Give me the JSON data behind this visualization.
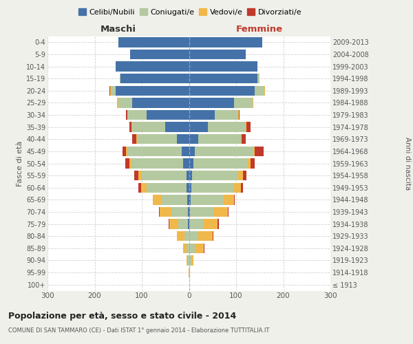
{
  "age_groups": [
    "100+",
    "95-99",
    "90-94",
    "85-89",
    "80-84",
    "75-79",
    "70-74",
    "65-69",
    "60-64",
    "55-59",
    "50-54",
    "45-49",
    "40-44",
    "35-39",
    "30-34",
    "25-29",
    "20-24",
    "15-19",
    "10-14",
    "5-9",
    "0-4"
  ],
  "birth_years": [
    "≤ 1913",
    "1914-1918",
    "1919-1923",
    "1924-1928",
    "1929-1933",
    "1934-1938",
    "1939-1943",
    "1944-1948",
    "1949-1953",
    "1954-1958",
    "1959-1963",
    "1964-1968",
    "1969-1973",
    "1974-1978",
    "1979-1983",
    "1984-1988",
    "1989-1993",
    "1994-1998",
    "1999-2003",
    "2004-2008",
    "2009-2013"
  ],
  "male": {
    "celibi": [
      0,
      0,
      0,
      0,
      0,
      2,
      2,
      3,
      5,
      5,
      12,
      15,
      25,
      50,
      90,
      120,
      155,
      145,
      155,
      125,
      150
    ],
    "coniugati": [
      0,
      0,
      2,
      5,
      10,
      20,
      35,
      55,
      85,
      95,
      110,
      115,
      85,
      70,
      40,
      30,
      10,
      2,
      0,
      0,
      0
    ],
    "vedovi": [
      0,
      1,
      3,
      8,
      15,
      20,
      25,
      18,
      12,
      8,
      5,
      3,
      2,
      2,
      1,
      2,
      2,
      0,
      0,
      0,
      0
    ],
    "divorziati": [
      0,
      0,
      0,
      0,
      0,
      1,
      1,
      1,
      5,
      8,
      8,
      8,
      8,
      5,
      3,
      1,
      1,
      0,
      0,
      0,
      0
    ]
  },
  "female": {
    "nubili": [
      0,
      0,
      0,
      0,
      0,
      1,
      2,
      3,
      5,
      6,
      10,
      12,
      20,
      40,
      55,
      95,
      140,
      145,
      145,
      120,
      155
    ],
    "coniugate": [
      0,
      1,
      5,
      12,
      20,
      30,
      50,
      70,
      90,
      98,
      115,
      125,
      90,
      80,
      50,
      40,
      20,
      5,
      0,
      0,
      0
    ],
    "vedove": [
      0,
      1,
      5,
      20,
      30,
      30,
      30,
      22,
      15,
      10,
      5,
      3,
      2,
      2,
      1,
      1,
      1,
      0,
      0,
      0,
      0
    ],
    "divorziate": [
      0,
      0,
      0,
      1,
      2,
      2,
      2,
      2,
      5,
      8,
      10,
      18,
      8,
      8,
      2,
      1,
      1,
      0,
      0,
      0,
      0
    ]
  },
  "colors": {
    "celibi": "#4472a8",
    "coniugati": "#b5c9a0",
    "vedovi": "#f0b84a",
    "divorziati": "#c0392b"
  },
  "title": "Popolazione per età, sesso e stato civile - 2014",
  "subtitle": "COMUNE DI SAN TAMMARO (CE) - Dati ISTAT 1° gennaio 2014 - Elaborazione TUTTITALIA.IT",
  "xlabel_left": "Maschi",
  "xlabel_right": "Femmine",
  "ylabel_left": "Fasce di età",
  "ylabel_right": "Anni di nascita",
  "xlim": 300,
  "bg_color": "#f0f0eb",
  "plot_bg": "#ffffff",
  "grid_color": "#cccccc"
}
